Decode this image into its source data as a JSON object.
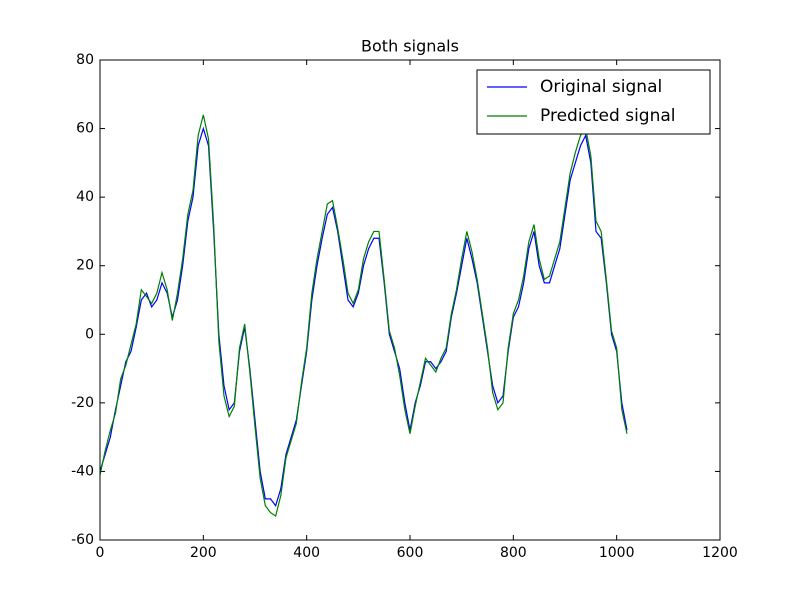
{
  "chart_data": {
    "type": "line",
    "title": "Both signals",
    "x": [
      0,
      10,
      20,
      30,
      40,
      50,
      60,
      70,
      80,
      90,
      100,
      110,
      120,
      130,
      140,
      150,
      160,
      170,
      180,
      190,
      200,
      210,
      220,
      230,
      240,
      250,
      260,
      270,
      280,
      290,
      300,
      310,
      320,
      330,
      340,
      350,
      360,
      370,
      380,
      390,
      400,
      410,
      420,
      430,
      440,
      450,
      460,
      470,
      480,
      490,
      500,
      510,
      520,
      530,
      540,
      550,
      560,
      570,
      580,
      590,
      600,
      610,
      620,
      630,
      640,
      650,
      660,
      670,
      680,
      690,
      700,
      710,
      720,
      730,
      740,
      750,
      760,
      770,
      780,
      790,
      800,
      810,
      820,
      830,
      840,
      850,
      860,
      870,
      880,
      890,
      900,
      910,
      920,
      930,
      940,
      950,
      960,
      970,
      980,
      990,
      1000,
      1010,
      1020
    ],
    "series": [
      {
        "name": "Original signal",
        "color": "#0000ff",
        "values": [
          -40,
          -35,
          -30,
          -22,
          -15,
          -8,
          -5,
          2,
          10,
          12,
          8,
          10,
          15,
          12,
          5,
          10,
          20,
          33,
          40,
          55,
          60,
          55,
          30,
          0,
          -15,
          -22,
          -20,
          -5,
          2,
          -10,
          -25,
          -40,
          -48,
          -48,
          -50,
          -45,
          -35,
          -30,
          -25,
          -15,
          -5,
          10,
          20,
          28,
          35,
          37,
          30,
          20,
          10,
          8,
          12,
          20,
          25,
          28,
          28,
          15,
          0,
          -5,
          -10,
          -20,
          -28,
          -20,
          -15,
          -8,
          -8,
          -10,
          -8,
          -5,
          5,
          12,
          20,
          28,
          22,
          15,
          5,
          -5,
          -15,
          -20,
          -18,
          -5,
          5,
          8,
          15,
          25,
          30,
          20,
          15,
          15,
          20,
          25,
          35,
          45,
          50,
          55,
          58,
          50,
          30,
          28,
          15,
          0,
          -5,
          -20,
          -28
        ]
      },
      {
        "name": "Predicted signal",
        "color": "#008000",
        "values": [
          -41,
          -34,
          -28,
          -23,
          -13,
          -9,
          -3,
          3,
          13,
          11,
          9,
          12,
          18,
          13,
          4,
          12,
          22,
          35,
          42,
          58,
          64,
          57,
          32,
          -2,
          -18,
          -24,
          -21,
          -4,
          3,
          -11,
          -27,
          -42,
          -50,
          -52,
          -53,
          -47,
          -36,
          -31,
          -26,
          -14,
          -4,
          12,
          22,
          30,
          38,
          39,
          31,
          22,
          12,
          9,
          13,
          22,
          27,
          30,
          30,
          16,
          1,
          -4,
          -12,
          -22,
          -29,
          -21,
          -14,
          -7,
          -9,
          -11,
          -7,
          -4,
          6,
          13,
          22,
          30,
          24,
          16,
          6,
          -4,
          -17,
          -22,
          -20,
          -4,
          6,
          10,
          17,
          27,
          32,
          22,
          16,
          17,
          22,
          27,
          37,
          47,
          53,
          58,
          60,
          52,
          33,
          30,
          16,
          1,
          -4,
          -22,
          -29
        ]
      }
    ],
    "xlim": [
      0,
      1200
    ],
    "xticks": [
      0,
      200,
      400,
      600,
      800,
      1000,
      1200
    ],
    "ylim": [
      -60,
      80
    ],
    "yticks": [
      -60,
      -40,
      -20,
      0,
      20,
      40,
      60,
      80
    ],
    "legend": "upper right"
  }
}
